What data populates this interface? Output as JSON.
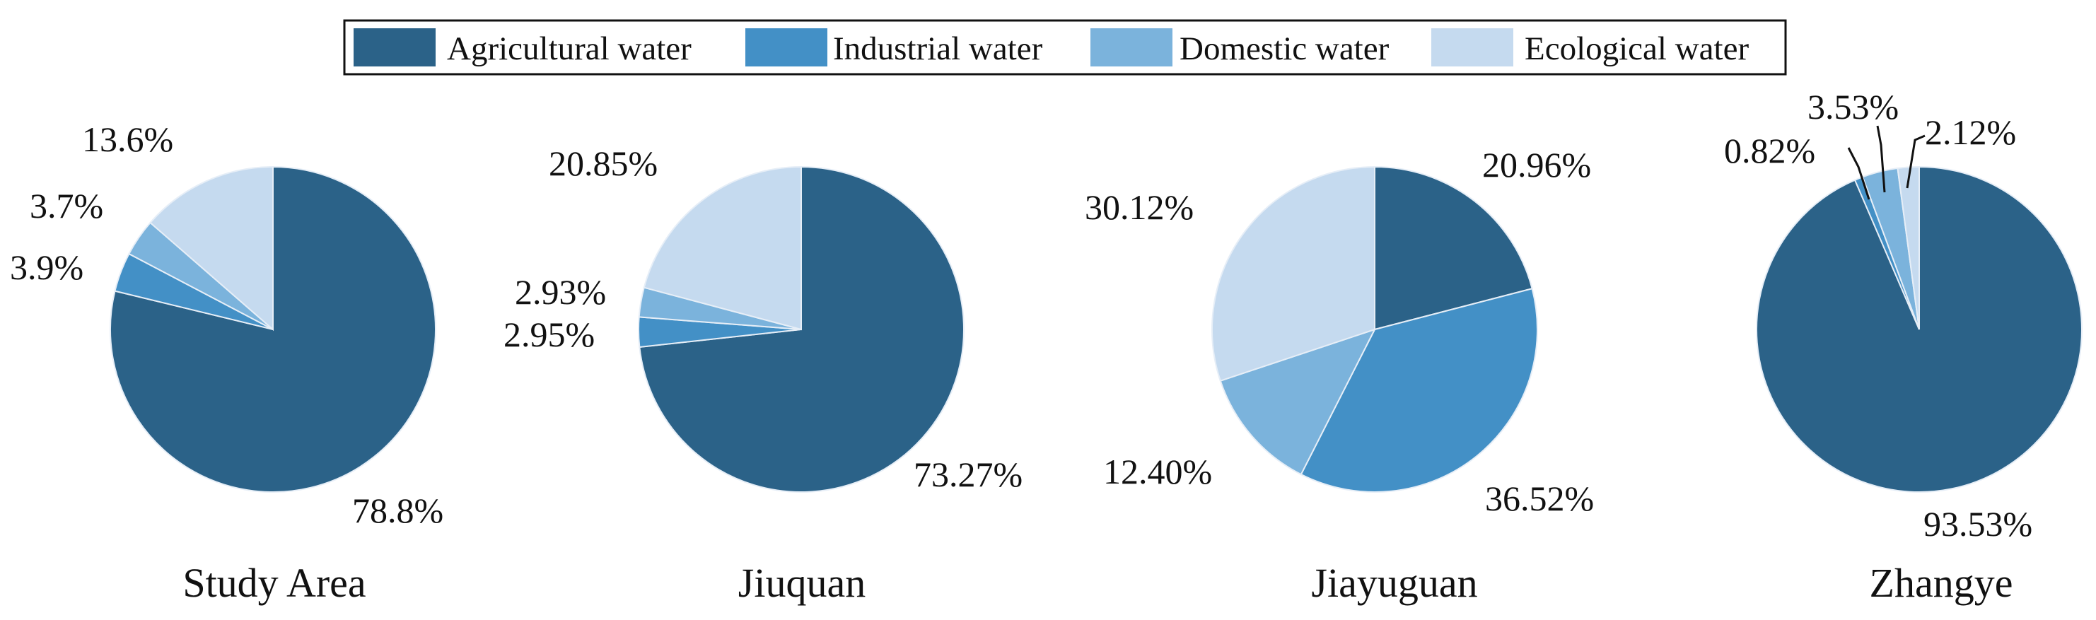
{
  "chart_data": {
    "type": "pie",
    "legend": {
      "placement": "top-center",
      "entries": [
        {
          "name": "Agricultural water",
          "color": "#2b6288"
        },
        {
          "name": "Industrial water",
          "color": "#4390c6"
        },
        {
          "name": "Domestic water",
          "color": "#7bb3dc"
        },
        {
          "name": "Ecological water",
          "color": "#c5daef"
        }
      ]
    },
    "charts": [
      {
        "title": "Study Area",
        "slices": [
          {
            "category": "Agricultural water",
            "value": 78.8,
            "label": "78.8%"
          },
          {
            "category": "Industrial water",
            "value": 3.9,
            "label": "3.9%"
          },
          {
            "category": "Domestic water",
            "value": 3.7,
            "label": "3.7%"
          },
          {
            "category": "Ecological water",
            "value": 13.6,
            "label": "13.6%"
          }
        ]
      },
      {
        "title": "Jiuquan",
        "slices": [
          {
            "category": "Agricultural water",
            "value": 73.27,
            "label": "73.27%"
          },
          {
            "category": "Industrial water",
            "value": 2.95,
            "label": "2.95%"
          },
          {
            "category": "Domestic water",
            "value": 2.93,
            "label": "2.93%"
          },
          {
            "category": "Ecological water",
            "value": 20.85,
            "label": "20.85%"
          }
        ]
      },
      {
        "title": "Jiayuguan",
        "slices": [
          {
            "category": "Agricultural water",
            "value": 20.96,
            "label": "20.96%"
          },
          {
            "category": "Industrial water",
            "value": 36.52,
            "label": "36.52%"
          },
          {
            "category": "Domestic water",
            "value": 12.4,
            "label": "12.40%"
          },
          {
            "category": "Ecological water",
            "value": 30.12,
            "label": "30.12%"
          }
        ]
      },
      {
        "title": "Zhangye",
        "slices": [
          {
            "category": "Agricultural water",
            "value": 93.53,
            "label": "93.53%"
          },
          {
            "category": "Industrial water",
            "value": 0.82,
            "label": "0.82%"
          },
          {
            "category": "Domestic water",
            "value": 3.53,
            "label": "3.53%"
          },
          {
            "category": "Ecological water",
            "value": 2.12,
            "label": "2.12%"
          }
        ]
      }
    ]
  }
}
